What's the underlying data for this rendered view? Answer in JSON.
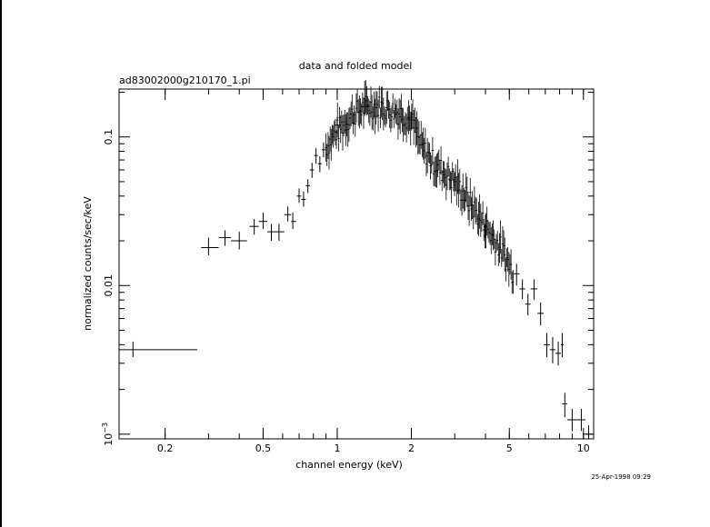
{
  "chart_data": {
    "type": "scatter",
    "title": "data and folded model",
    "subtitle": "ad83002000g210170_1.pi",
    "xlabel": "channel energy (keV)",
    "ylabel": "normalized counts/sec/keV",
    "timestamp": "25-Apr-1998 09:29",
    "xscale": "log",
    "yscale": "log",
    "xlim": [
      0.13,
      11.0
    ],
    "ylim": [
      0.00093,
      0.21
    ],
    "grid": false,
    "legend": "none",
    "x_ticks": [
      {
        "value": 0.2,
        "label": "0.2"
      },
      {
        "value": 0.5,
        "label": "0.5"
      },
      {
        "value": 1,
        "label": "1"
      },
      {
        "value": 2,
        "label": "2"
      },
      {
        "value": 5,
        "label": "5"
      },
      {
        "value": 10,
        "label": "10"
      }
    ],
    "y_ticks": [
      {
        "value": 0.1,
        "label": "0.1"
      },
      {
        "value": 0.01,
        "label": "0.01"
      },
      {
        "value": 0.001,
        "label": "10",
        "exponent": "−3"
      }
    ],
    "series": [
      {
        "color": "#000000",
        "points": [
          {
            "x": 0.148,
            "x_lo": 0.13,
            "x_hi": 0.27,
            "y": 0.0037,
            "y_lo": 0.0033,
            "y_hi": 0.0042
          },
          {
            "x": 0.3,
            "x_lo": 0.28,
            "x_hi": 0.33,
            "y": 0.018,
            "y_lo": 0.016,
            "y_hi": 0.021
          },
          {
            "x": 0.35,
            "x_lo": 0.33,
            "x_hi": 0.37,
            "y": 0.021,
            "y_lo": 0.0185,
            "y_hi": 0.0235
          },
          {
            "x": 0.4,
            "x_lo": 0.37,
            "x_hi": 0.43,
            "y": 0.02,
            "y_lo": 0.0175,
            "y_hi": 0.023
          },
          {
            "x": 0.46,
            "x_lo": 0.44,
            "x_hi": 0.48,
            "y": 0.025,
            "y_lo": 0.022,
            "y_hi": 0.028
          },
          {
            "x": 0.5,
            "x_lo": 0.48,
            "x_hi": 0.52,
            "y": 0.027,
            "y_lo": 0.024,
            "y_hi": 0.031
          },
          {
            "x": 0.54,
            "x_lo": 0.52,
            "x_hi": 0.56,
            "y": 0.023,
            "y_lo": 0.02,
            "y_hi": 0.026
          },
          {
            "x": 0.58,
            "x_lo": 0.56,
            "x_hi": 0.61,
            "y": 0.023,
            "y_lo": 0.02,
            "y_hi": 0.026
          },
          {
            "x": 0.63,
            "x_lo": 0.61,
            "x_hi": 0.65,
            "y": 0.03,
            "y_lo": 0.027,
            "y_hi": 0.034
          },
          {
            "x": 0.66,
            "x_lo": 0.65,
            "x_hi": 0.68,
            "y": 0.027,
            "y_lo": 0.024,
            "y_hi": 0.031
          },
          {
            "x": 0.7,
            "x_lo": 0.685,
            "x_hi": 0.715,
            "y": 0.04,
            "y_lo": 0.036,
            "y_hi": 0.045
          },
          {
            "x": 0.73,
            "x_lo": 0.715,
            "x_hi": 0.745,
            "y": 0.038,
            "y_lo": 0.034,
            "y_hi": 0.043
          },
          {
            "x": 0.76,
            "x_lo": 0.745,
            "x_hi": 0.775,
            "y": 0.047,
            "y_lo": 0.042,
            "y_hi": 0.052
          },
          {
            "x": 0.79,
            "x_lo": 0.775,
            "x_hi": 0.805,
            "y": 0.06,
            "y_lo": 0.053,
            "y_hi": 0.067
          },
          {
            "x": 0.82,
            "x_lo": 0.805,
            "x_hi": 0.835,
            "y": 0.075,
            "y_lo": 0.066,
            "y_hi": 0.084
          },
          {
            "x": 0.85,
            "x_lo": 0.835,
            "x_hi": 0.865,
            "y": 0.066,
            "y_lo": 0.058,
            "y_hi": 0.074
          },
          {
            "x": 0.88,
            "x_lo": 0.865,
            "x_hi": 0.895,
            "y": 0.082,
            "y_lo": 0.073,
            "y_hi": 0.092
          },
          {
            "x": 1.0,
            "x_lo": 0.97,
            "x_hi": 1.03,
            "y": 0.12,
            "y_lo": 0.105,
            "y_hi": 0.136
          },
          {
            "x": 1.3,
            "x_lo": 1.25,
            "x_hi": 1.35,
            "y": 0.16,
            "y_lo": 0.142,
            "y_hi": 0.18
          },
          {
            "x": 2.0,
            "x_lo": 1.95,
            "x_hi": 2.05,
            "y": 0.13,
            "y_lo": 0.115,
            "y_hi": 0.147
          },
          {
            "x": 3.0,
            "x_lo": 2.95,
            "x_hi": 3.05,
            "y": 0.05,
            "y_lo": 0.043,
            "y_hi": 0.058
          },
          {
            "x": 4.0,
            "x_lo": 3.94,
            "x_hi": 4.06,
            "y": 0.025,
            "y_lo": 0.021,
            "y_hi": 0.03
          },
          {
            "x": 5.35,
            "x_lo": 5.2,
            "x_hi": 5.5,
            "y": 0.012,
            "y_lo": 0.01,
            "y_hi": 0.014
          },
          {
            "x": 5.65,
            "x_lo": 5.5,
            "x_hi": 5.8,
            "y": 0.0095,
            "y_lo": 0.0081,
            "y_hi": 0.011
          },
          {
            "x": 5.95,
            "x_lo": 5.8,
            "x_hi": 6.1,
            "y": 0.0075,
            "y_lo": 0.0063,
            "y_hi": 0.0088
          },
          {
            "x": 6.3,
            "x_lo": 6.1,
            "x_hi": 6.5,
            "y": 0.0095,
            "y_lo": 0.008,
            "y_hi": 0.011
          },
          {
            "x": 6.7,
            "x_lo": 6.5,
            "x_hi": 6.9,
            "y": 0.0065,
            "y_lo": 0.0054,
            "y_hi": 0.0077
          },
          {
            "x": 7.1,
            "x_lo": 6.9,
            "x_hi": 7.3,
            "y": 0.004,
            "y_lo": 0.0033,
            "y_hi": 0.0048
          },
          {
            "x": 7.5,
            "x_lo": 7.3,
            "x_hi": 7.7,
            "y": 0.0037,
            "y_lo": 0.003,
            "y_hi": 0.0045
          },
          {
            "x": 7.9,
            "x_lo": 7.7,
            "x_hi": 8.1,
            "y": 0.0035,
            "y_lo": 0.0029,
            "y_hi": 0.0042
          },
          {
            "x": 8.2,
            "x_lo": 8.1,
            "x_hi": 8.3,
            "y": 0.004,
            "y_lo": 0.0033,
            "y_hi": 0.0048
          },
          {
            "x": 8.4,
            "x_lo": 8.2,
            "x_hi": 8.6,
            "y": 0.0016,
            "y_lo": 0.0013,
            "y_hi": 0.0019
          },
          {
            "x": 9.0,
            "x_lo": 8.6,
            "x_hi": 9.4,
            "y": 0.00125,
            "y_lo": 0.00105,
            "y_hi": 0.00148
          },
          {
            "x": 9.8,
            "x_lo": 9.4,
            "x_hi": 10.2,
            "y": 0.00125,
            "y_lo": 0.00105,
            "y_hi": 0.00148
          },
          {
            "x": 10.5,
            "x_lo": 10.2,
            "x_hi": 10.9,
            "y": 0.001,
            "y_lo": 0.00093,
            "y_hi": 0.00115
          }
        ]
      }
    ]
  }
}
